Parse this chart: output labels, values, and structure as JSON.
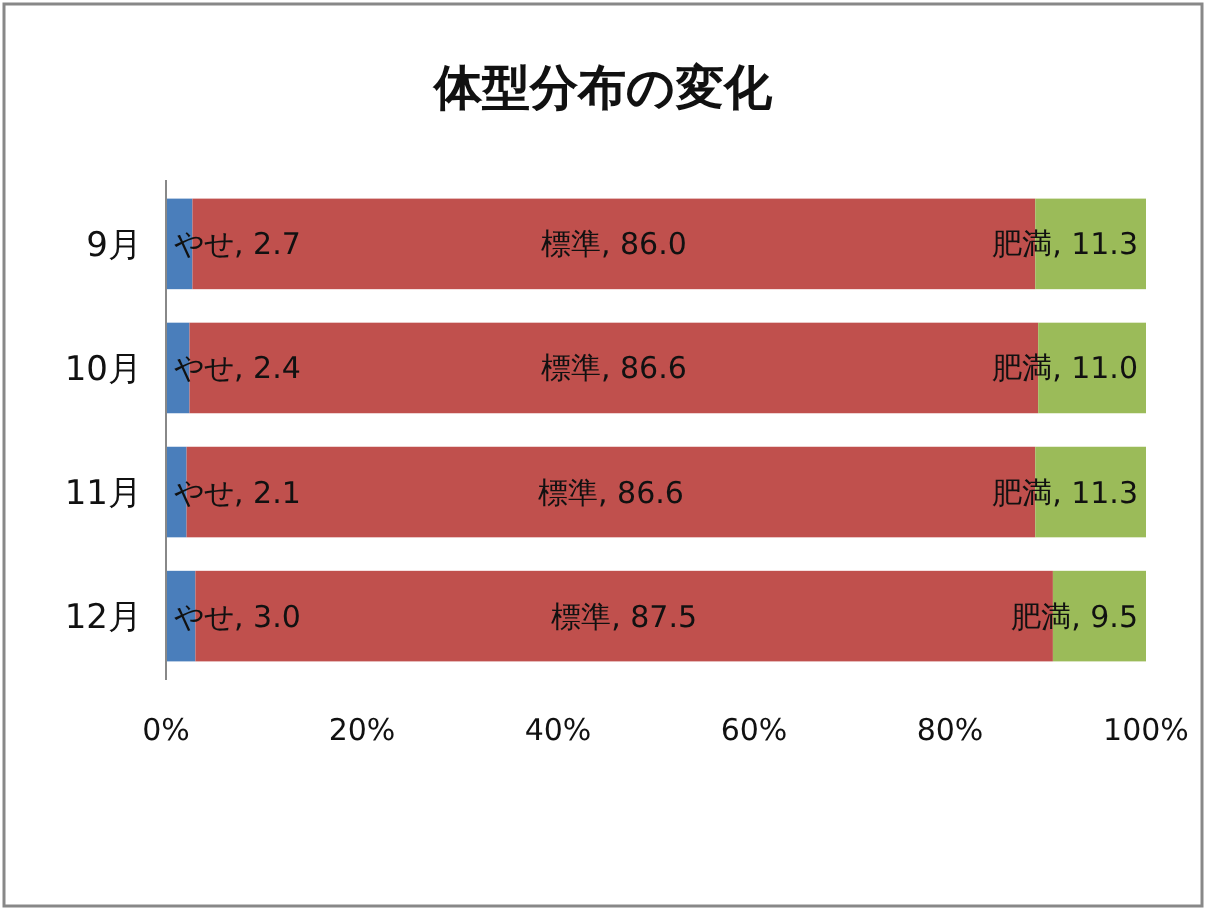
{
  "chart_data": {
    "type": "bar",
    "title": "体型分布の変化",
    "orientation": "horizontal",
    "stacked": true,
    "categories": [
      "9月",
      "10月",
      "11月",
      "12月"
    ],
    "series": [
      {
        "color": "#4a7ebb",
        "values": [
          2.7,
          2.4,
          2.1,
          3.0
        ],
        "value_labels": [
          "やせ, 2.7",
          "やせ, 2.4",
          "やせ, 2.1",
          "やせ, 3.0"
        ]
      },
      {
        "color": "#c0504d",
        "values": [
          86.0,
          86.6,
          86.6,
          87.5
        ],
        "value_labels": [
          "標準, 86.0",
          "標準, 86.6",
          "標準, 86.6",
          "標準, 87.5"
        ]
      },
      {
        "color": "#9bbb59",
        "values": [
          11.3,
          11.0,
          11.3,
          9.5
        ],
        "value_labels": [
          "肥満, 11.3",
          "肥満, 11.0",
          "肥満, 11.3",
          "肥満, 9.5"
        ]
      }
    ],
    "xlim": [
      0,
      100
    ],
    "xticks": [
      {
        "value": 0,
        "label": "0%"
      },
      {
        "value": 20,
        "label": "20%"
      },
      {
        "value": 40,
        "label": "40%"
      },
      {
        "value": 60,
        "label": "60%"
      },
      {
        "value": 80,
        "label": "80%"
      },
      {
        "value": 100,
        "label": "100%"
      }
    ],
    "grid": false,
    "legend": false
  }
}
